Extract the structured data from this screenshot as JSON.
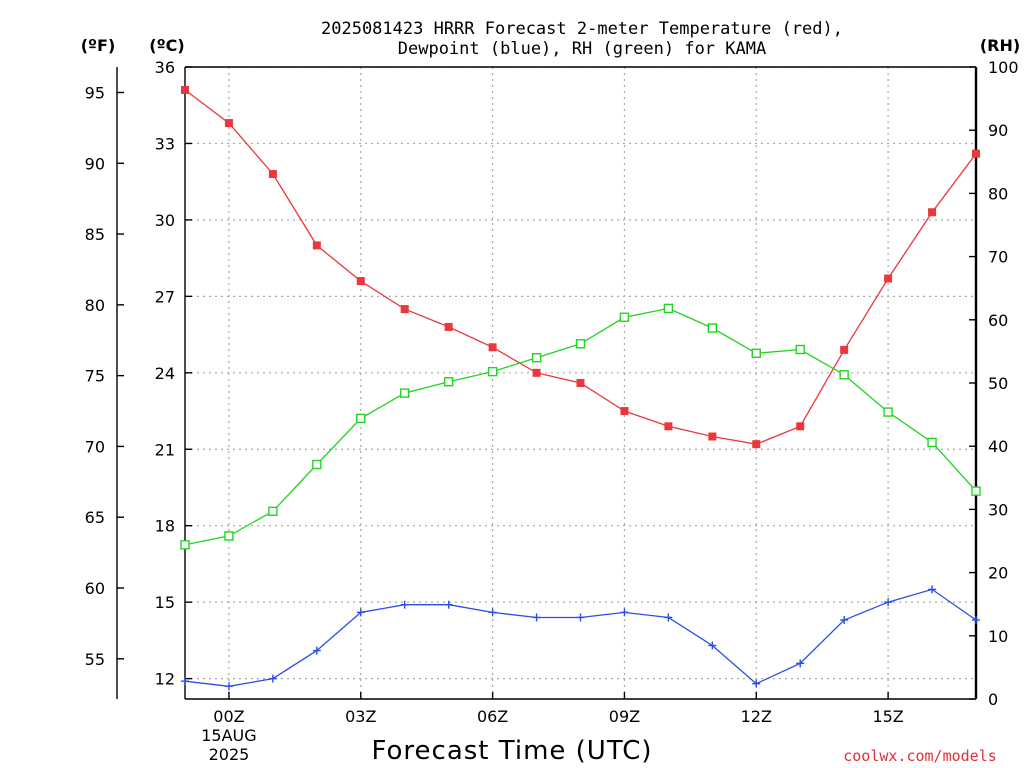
{
  "chart_data": {
    "type": "line",
    "title_lines": [
      "2025081423 HRRR Forecast 2-meter Temperature (red),",
      "Dewpoint (blue), RH (green) for KAMA"
    ],
    "units": {
      "fahrenheit": "(ºF)",
      "celsius": "(ºC)",
      "rh": "(RH)"
    },
    "xlabel": "Forecast Time (UTC)",
    "credit": "coolwx.com/models",
    "x_hours": [
      -1,
      0,
      1,
      2,
      3,
      4,
      5,
      6,
      7,
      8,
      9,
      10,
      11,
      12,
      13,
      14,
      15,
      16,
      17
    ],
    "x_ticks": [
      {
        "hour": 0,
        "label": "00Z",
        "sub1": "15AUG",
        "sub2": "2025"
      },
      {
        "hour": 3,
        "label": "03Z"
      },
      {
        "hour": 6,
        "label": "06Z"
      },
      {
        "hour": 9,
        "label": "09Z"
      },
      {
        "hour": 12,
        "label": "12Z"
      },
      {
        "hour": 15,
        "label": "15Z"
      }
    ],
    "xlim": [
      -1,
      17
    ],
    "celsius_axis": {
      "ylim": [
        11.2,
        36
      ],
      "ticks": [
        "12",
        "15",
        "18",
        "21",
        "24",
        "27",
        "30",
        "33",
        "36"
      ]
    },
    "fahrenheit_ticks": [
      "55",
      "60",
      "65",
      "70",
      "75",
      "80",
      "85",
      "90",
      "95"
    ],
    "rh_axis": {
      "ylim": [
        0,
        100
      ],
      "ticks": [
        "0",
        "10",
        "20",
        "30",
        "40",
        "50",
        "60",
        "70",
        "80",
        "90",
        "100"
      ]
    },
    "grid": true,
    "series": [
      {
        "name": "Temperature",
        "axis": "celsius",
        "color": "#e8383d",
        "marker": "filled-square",
        "values": [
          35.1,
          33.8,
          31.8,
          29.0,
          27.6,
          26.5,
          25.8,
          25.0,
          24.0,
          23.6,
          22.5,
          21.9,
          21.5,
          21.2,
          21.9,
          24.9,
          27.7,
          30.3,
          32.6
        ]
      },
      {
        "name": "Dewpoint",
        "axis": "celsius",
        "color": "#2a4ee6",
        "marker": "plus",
        "values": [
          11.9,
          11.7,
          12.0,
          13.1,
          14.6,
          14.9,
          14.9,
          14.6,
          14.4,
          14.4,
          14.6,
          14.4,
          13.3,
          11.8,
          12.6,
          14.3,
          15.0,
          15.5,
          14.3
        ]
      },
      {
        "name": "RH",
        "axis": "rh",
        "color": "#22d422",
        "marker": "open-square",
        "values": [
          24.4,
          25.8,
          29.7,
          37.1,
          44.4,
          48.4,
          50.2,
          51.8,
          54.0,
          56.2,
          60.4,
          61.8,
          58.7,
          54.7,
          55.3,
          51.3,
          45.4,
          40.6,
          32.9
        ]
      }
    ]
  }
}
